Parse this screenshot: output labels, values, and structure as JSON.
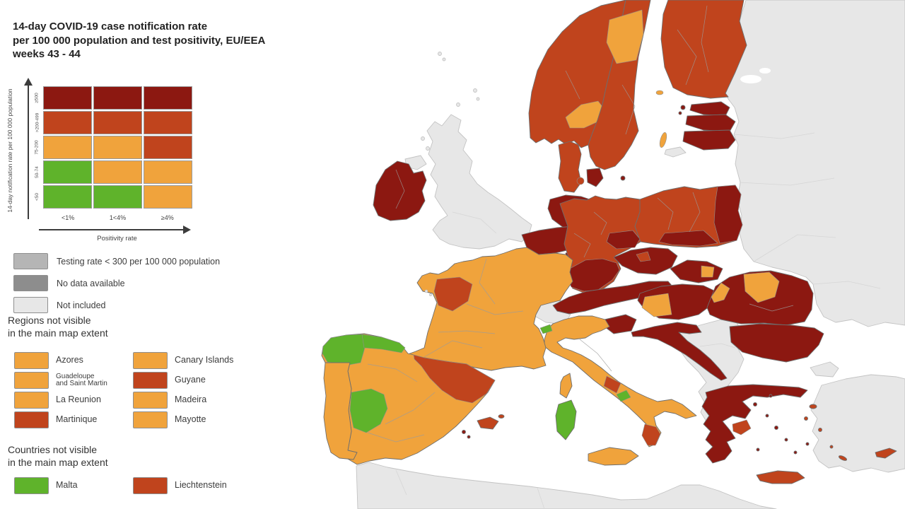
{
  "title": "14-day COVID-19 case notification rate\nper 100 000 population and test positivity, EU/EEA\nweeks 43 - 44",
  "palette": {
    "green": "#5fb32b",
    "orange": "#f0a33c",
    "red": "#c0441d",
    "dark_red": "#8c1811",
    "gray_low_testing": "#b5b5b5",
    "gray_no_data": "#8d8d8d",
    "gray_not_included": "#e7e7e7",
    "sea": "#ffffff",
    "axis": "#3c3c3c"
  },
  "legend_matrix": {
    "y_axis_label": "14-day notification rate per 100 000 population",
    "x_axis_label": "Positivity rate",
    "col_labels": [
      "<1%",
      "1<4%",
      "≥4%"
    ],
    "row_labels_top_to_bottom": [
      "≥500",
      ">200-499",
      "75-200",
      "50-74",
      "<50"
    ],
    "cells": [
      [
        "dark_red",
        "dark_red",
        "dark_red"
      ],
      [
        "red",
        "red",
        "red"
      ],
      [
        "orange",
        "orange",
        "red"
      ],
      [
        "green",
        "orange",
        "orange"
      ],
      [
        "green",
        "green",
        "orange"
      ]
    ]
  },
  "gray_legend": [
    {
      "color": "gray_low_testing",
      "label": "Testing rate < 300 per 100 000 population"
    },
    {
      "color": "gray_no_data",
      "label": "No data available"
    },
    {
      "color": "gray_not_included",
      "label": "Not included"
    }
  ],
  "regions_heading": "Regions not visible\nin the main map extent",
  "regions": [
    {
      "label": "Azores",
      "color": "orange",
      "small": false
    },
    {
      "label": "Canary Islands",
      "color": "orange",
      "small": false
    },
    {
      "label": "Guadeloupe\nand Saint Martin",
      "color": "orange",
      "small": true
    },
    {
      "label": "Guyane",
      "color": "red",
      "small": false
    },
    {
      "label": "La Reunion",
      "color": "orange",
      "small": false
    },
    {
      "label": "Madeira",
      "color": "orange",
      "small": false
    },
    {
      "label": "Martinique",
      "color": "red",
      "small": false
    },
    {
      "label": "Mayotte",
      "color": "orange",
      "small": false
    }
  ],
  "countries_heading": "Countries not visible\nin the main map extent",
  "countries": [
    {
      "label": "Malta",
      "color": "green"
    },
    {
      "label": "Liechtenstein",
      "color": "red"
    }
  ],
  "map": {
    "region_colors": {
      "east_europe": "gray_not_included",
      "turkey": "gray_not_included",
      "turkey_thrace": "gray_not_included",
      "north_africa": "gray_not_included",
      "western_balkans": "gray_not_included",
      "great_britain": "gray_not_included",
      "northern_ireland": "gray_not_included",
      "switzerland": "gray_not_included",
      "kaliningrad": "gray_not_included",
      "faroe_islands": "gray_not_included",
      "scottish_islands": "gray_not_included",
      "channel_islands": "gray_not_included",
      "ireland": "dark_red",
      "norway": "red",
      "norway_south_region": "orange",
      "sweden": "red",
      "sweden_north_region": "orange",
      "gotland": "orange",
      "aland": "orange",
      "finland": "red",
      "denmark": "red",
      "denmark_funen": "red",
      "denmark_zealand": "dark_red",
      "bornholm": "dark_red",
      "estonia": "dark_red",
      "estonia_islands": "dark_red",
      "latvia": "dark_red",
      "lithuania": "dark_red",
      "netherlands": "dark_red",
      "belgium": "dark_red",
      "luxembourg": "dark_red",
      "germany": "red",
      "germany_south_region": "dark_red",
      "germany_saxony_region": "dark_red",
      "poland": "red",
      "poland_east_region": "dark_red",
      "poland_south_region": "dark_red",
      "czechia": "dark_red",
      "prague_region": "red",
      "austria": "dark_red",
      "slovakia": "dark_red",
      "slovakia_region": "orange",
      "hungary": "dark_red",
      "hungary_region": "orange",
      "slovenia": "dark_red",
      "croatia": "dark_red",
      "romania": "dark_red",
      "romania_ne_region": "orange",
      "romania_w_region": "orange",
      "bulgaria": "dark_red",
      "greece": "dark_red",
      "attica_region": "red",
      "crete": "red",
      "aegean_islands_dark": "dark_red",
      "aegean_islands_red": "red",
      "cyprus": "red",
      "italy": "orange",
      "abruzzo_region": "red",
      "molise_region": "green",
      "calabria_region": "red",
      "sicily": "orange",
      "sardinia": "green",
      "corsica": "orange",
      "france": "orange",
      "pays_de_la_loire_region": "red",
      "valle_aosta_region": "green",
      "spain": "orange",
      "galicia_region": "green",
      "asturias_region": "green",
      "extremadura_region": "green",
      "spain_ne_region": "red",
      "mallorca": "red",
      "balearic_small": "dark_red",
      "menorca": "red",
      "portugal": "orange"
    }
  }
}
